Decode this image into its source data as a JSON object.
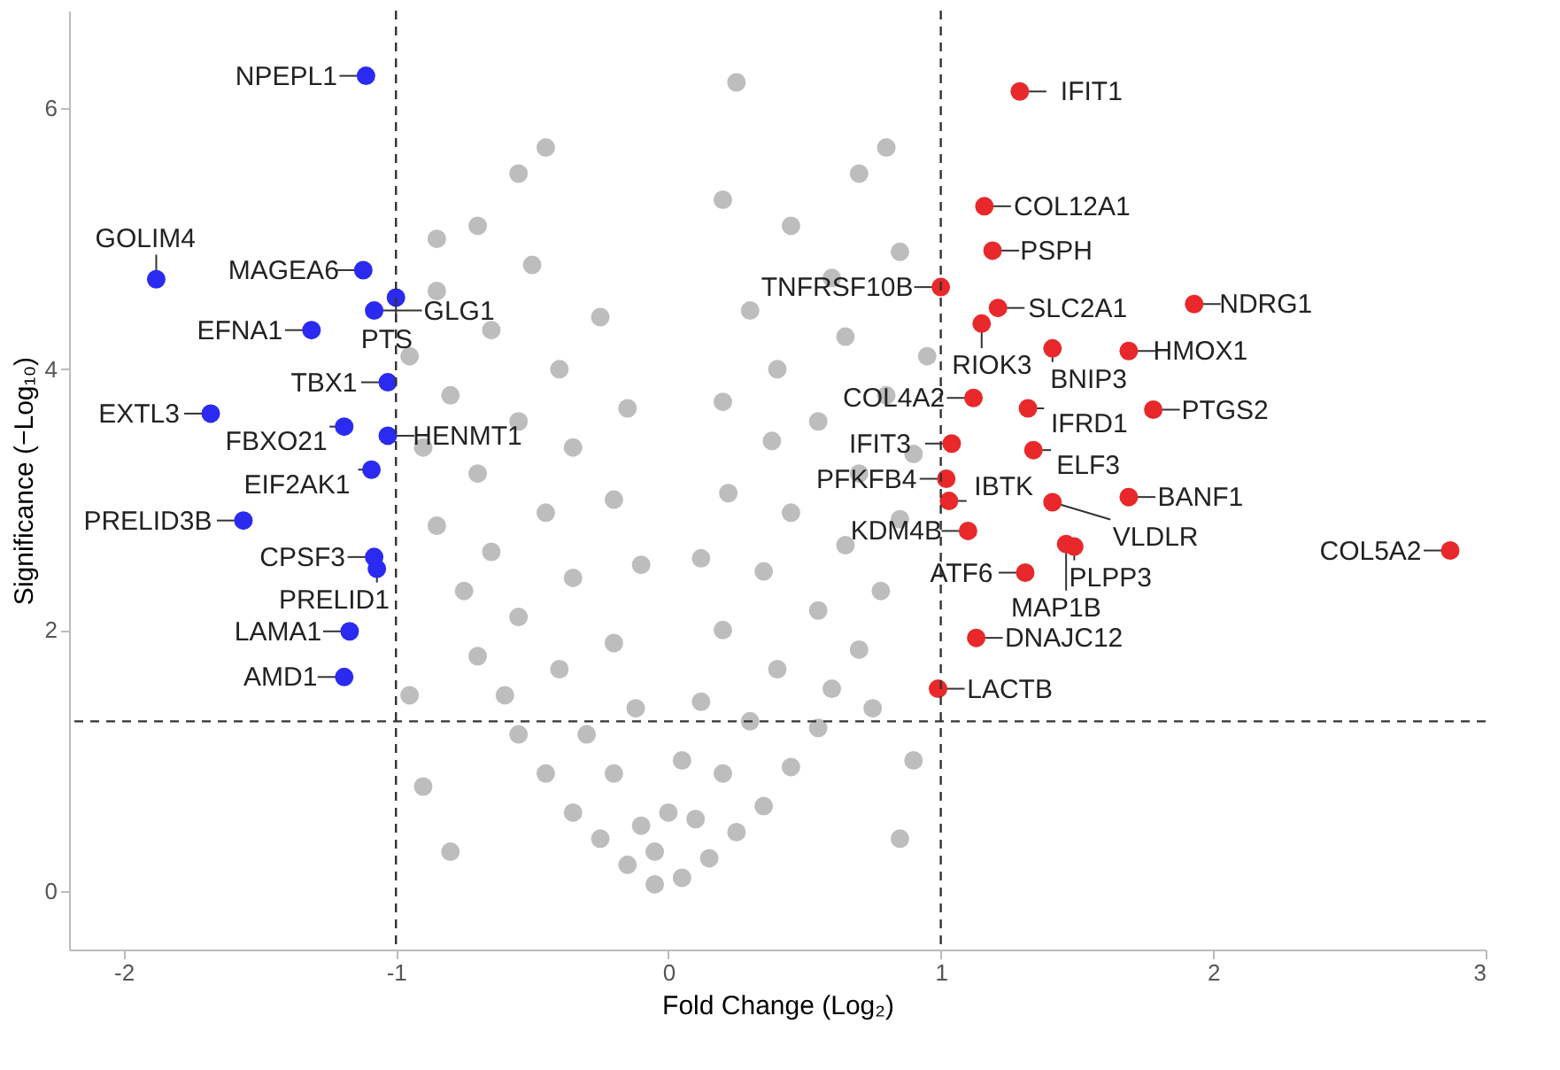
{
  "chart_data": {
    "type": "scatter",
    "xlabel": "Fold Change (Log₂)",
    "ylabel": "Significance (−Log₁₀)",
    "xlim": [
      -2.2,
      3.0
    ],
    "ylim": [
      -0.45,
      6.75
    ],
    "xticks": [
      -2,
      -1,
      0,
      1,
      2,
      3
    ],
    "yticks": [
      0,
      2,
      4,
      6
    ],
    "grid": false,
    "marker": "circle",
    "series": [
      {
        "color": "#bdbdbd",
        "x": [
          -0.05,
          0.05,
          -0.15,
          0.15,
          -0.25,
          0.25,
          -0.35,
          0.35,
          -0.1,
          0.1,
          -0.45,
          0.45,
          -0.2,
          0.2,
          -0.55,
          0.55,
          -0.3,
          0.3,
          -0.12,
          0.12,
          -0.6,
          0.6,
          -0.4,
          0.4,
          -0.7,
          0.7,
          -0.2,
          0.2,
          -0.55,
          0.55,
          -0.75,
          0.78,
          -0.35,
          0.35,
          -0.1,
          0.12,
          -0.65,
          0.65,
          -0.85,
          0.85,
          -0.45,
          0.45,
          -0.2,
          0.22,
          -0.7,
          0.7,
          -0.9,
          0.9,
          -0.35,
          0.38,
          -0.55,
          0.55,
          -0.15,
          0.2,
          -0.8,
          0.8,
          -0.4,
          0.4,
          -0.95,
          0.95,
          -0.65,
          0.65,
          -0.25,
          0.3,
          -0.85,
          0.6,
          -0.5,
          0.85,
          -0.7,
          0.45,
          -0.55,
          0.2,
          -0.45,
          0.7,
          -0.85,
          0.25,
          0.8,
          -0.9,
          -0.95,
          0.9,
          0.85,
          -0.8,
          0.75,
          0.0,
          -0.05,
          0.05
        ],
        "values": [
          0.05,
          0.1,
          0.2,
          0.25,
          0.4,
          0.45,
          0.6,
          0.65,
          0.5,
          0.55,
          0.9,
          0.95,
          0.9,
          0.9,
          1.2,
          1.25,
          1.2,
          1.3,
          1.4,
          1.45,
          1.5,
          1.55,
          1.7,
          1.7,
          1.8,
          1.85,
          1.9,
          2.0,
          2.1,
          2.15,
          2.3,
          2.3,
          2.4,
          2.45,
          2.5,
          2.55,
          2.6,
          2.65,
          2.8,
          2.85,
          2.9,
          2.9,
          3.0,
          3.05,
          3.2,
          3.2,
          3.4,
          3.35,
          3.4,
          3.45,
          3.6,
          3.6,
          3.7,
          3.75,
          3.8,
          3.8,
          4.0,
          4.0,
          4.1,
          4.1,
          4.3,
          4.25,
          4.4,
          4.45,
          4.6,
          4.7,
          4.8,
          4.9,
          5.1,
          5.1,
          5.5,
          5.3,
          5.7,
          5.5,
          5.0,
          6.2,
          5.7,
          0.8,
          1.5,
          1.0,
          0.4,
          0.3,
          1.4,
          0.6,
          0.3,
          1.0
        ]
      },
      {
        "color": "#2a2af0",
        "x": [
          -1.11,
          -1.88,
          -1.12,
          -1.0,
          -1.08,
          -1.31,
          -1.68,
          -1.03,
          -1.19,
          -1.03,
          -1.56,
          -1.09,
          -1.08,
          -1.07,
          -1.17,
          -1.19
        ],
        "values": [
          6.25,
          4.69,
          4.76,
          4.55,
          4.45,
          4.3,
          3.66,
          3.9,
          3.56,
          3.49,
          2.84,
          3.23,
          2.56,
          2.47,
          1.99,
          1.64
        ]
      },
      {
        "color": "#e8282a",
        "x": [
          1.29,
          1.16,
          1.19,
          1.21,
          1.15,
          1.0,
          1.41,
          1.93,
          1.69,
          1.12,
          1.32,
          1.78,
          1.34,
          1.04,
          1.69,
          1.41,
          2.87,
          1.02,
          1.03,
          1.1,
          1.49,
          1.46,
          1.31,
          1.13,
          0.99
        ],
        "values": [
          6.13,
          5.25,
          4.91,
          4.47,
          4.35,
          4.63,
          4.16,
          4.5,
          4.14,
          3.78,
          3.7,
          3.69,
          3.38,
          3.43,
          3.02,
          2.98,
          2.61,
          3.16,
          2.99,
          2.76,
          2.64,
          2.66,
          2.44,
          1.94,
          1.55
        ]
      }
    ],
    "ref_lines": [
      {
        "axis": "x",
        "value": -1,
        "line_style": "dashed",
        "color": "#333333"
      },
      {
        "axis": "x",
        "value": 1,
        "line_style": "dashed",
        "color": "#333333"
      },
      {
        "axis": "y",
        "value": 1.3,
        "line_style": "dashed",
        "color": "#333333"
      }
    ],
    "annotations": [
      {
        "text": "NPEPL1",
        "x": -1.11,
        "y": 6.25
      },
      {
        "text": "GOLIM4",
        "x": -1.88,
        "y": 4.69
      },
      {
        "text": "MAGEA6",
        "x": -1.12,
        "y": 4.76
      },
      {
        "text": "PTS",
        "x": -1.0,
        "y": 4.55
      },
      {
        "text": "GLG1",
        "x": -1.08,
        "y": 4.45
      },
      {
        "text": "EFNA1",
        "x": -1.31,
        "y": 4.3
      },
      {
        "text": "EXTL3",
        "x": -1.68,
        "y": 3.66
      },
      {
        "text": "TBX1",
        "x": -1.03,
        "y": 3.9
      },
      {
        "text": "FBXO21",
        "x": -1.19,
        "y": 3.56
      },
      {
        "text": "HENMT1",
        "x": -1.03,
        "y": 3.49
      },
      {
        "text": "PRELID3B",
        "x": -1.56,
        "y": 2.84
      },
      {
        "text": "EIF2AK1",
        "x": -1.09,
        "y": 3.23
      },
      {
        "text": "CPSF3",
        "x": -1.08,
        "y": 2.56
      },
      {
        "text": "PRELID1",
        "x": -1.07,
        "y": 2.47
      },
      {
        "text": "LAMA1",
        "x": -1.17,
        "y": 1.99
      },
      {
        "text": "AMD1",
        "x": -1.19,
        "y": 1.64
      },
      {
        "text": "IFIT1",
        "x": 1.29,
        "y": 6.13
      },
      {
        "text": "COL12A1",
        "x": 1.16,
        "y": 5.25
      },
      {
        "text": "PSPH",
        "x": 1.19,
        "y": 4.91
      },
      {
        "text": "SLC2A1",
        "x": 1.21,
        "y": 4.47
      },
      {
        "text": "RIOK3",
        "x": 1.15,
        "y": 4.35
      },
      {
        "text": "TNFRSF10B",
        "x": 1.0,
        "y": 4.63
      },
      {
        "text": "BNIP3",
        "x": 1.41,
        "y": 4.16
      },
      {
        "text": "NDRG1",
        "x": 1.93,
        "y": 4.5
      },
      {
        "text": "HMOX1",
        "x": 1.69,
        "y": 4.14
      },
      {
        "text": "COL4A2",
        "x": 1.12,
        "y": 3.78
      },
      {
        "text": "IFRD1",
        "x": 1.32,
        "y": 3.7
      },
      {
        "text": "PTGS2",
        "x": 1.78,
        "y": 3.69
      },
      {
        "text": "ELF3",
        "x": 1.34,
        "y": 3.38
      },
      {
        "text": "IFIT3",
        "x": 1.04,
        "y": 3.43
      },
      {
        "text": "BANF1",
        "x": 1.69,
        "y": 3.02
      },
      {
        "text": "VLDLR",
        "x": 1.41,
        "y": 2.98
      },
      {
        "text": "COL5A2",
        "x": 2.87,
        "y": 2.61
      },
      {
        "text": "PFKFB4",
        "x": 1.02,
        "y": 3.16
      },
      {
        "text": "IBTK",
        "x": 1.03,
        "y": 2.99
      },
      {
        "text": "KDM4B",
        "x": 1.1,
        "y": 2.76
      },
      {
        "text": "PLPP3",
        "x": 1.49,
        "y": 2.64
      },
      {
        "text": "MAP1B",
        "x": 1.46,
        "y": 2.66
      },
      {
        "text": "ATF6",
        "x": 1.31,
        "y": 2.44
      },
      {
        "text": "DNAJC12",
        "x": 1.13,
        "y": 1.94
      },
      {
        "text": "LACTB",
        "x": 0.99,
        "y": 1.55
      }
    ]
  }
}
